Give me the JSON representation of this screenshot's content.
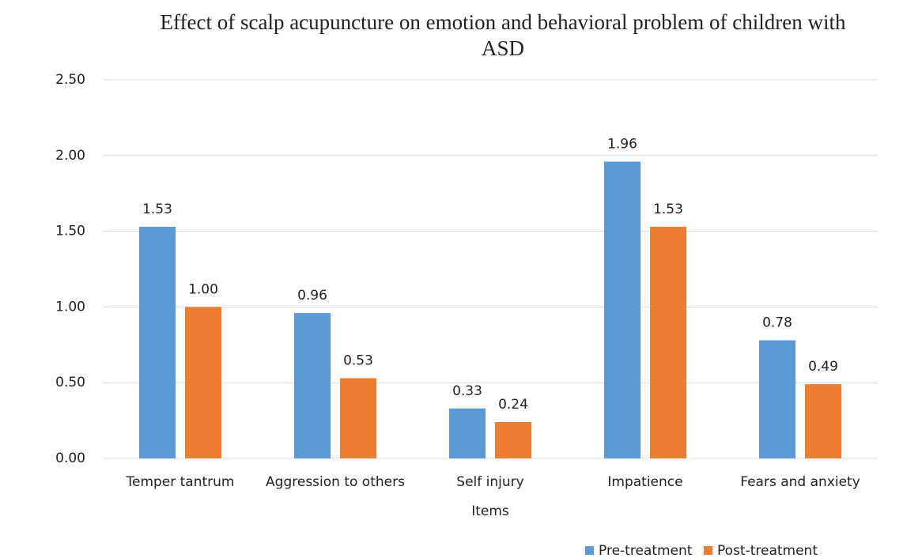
{
  "chart_data": {
    "type": "bar",
    "title": "Effect of scalp acupuncture on emotion and behavioral problem of children with ASD",
    "x_label": "Items",
    "categories": [
      "Temper tantrum",
      "Aggression to others",
      "Self injury",
      "Impatience",
      "Fears and anxiety"
    ],
    "series": [
      {
        "name": "Pre-treatment",
        "color": "#5b9bd5",
        "values": [
          1.53,
          0.96,
          0.33,
          1.96,
          0.78
        ],
        "value_labels": [
          "1.53",
          "0.96",
          "0.33",
          "1.96",
          "0.78"
        ]
      },
      {
        "name": "Post-treatment",
        "color": "#ed7d31",
        "values": [
          1.0,
          0.53,
          0.24,
          1.53,
          0.49
        ],
        "value_labels": [
          "1.00",
          "0.53",
          "0.24",
          "1.53",
          "0.49"
        ]
      }
    ],
    "ylim": [
      0,
      2.5
    ],
    "yticks": [
      {
        "value": 0,
        "label": "0.00"
      },
      {
        "value": 0.5,
        "label": "0.50"
      },
      {
        "value": 1,
        "label": "1.00"
      },
      {
        "value": 1.5,
        "label": "1.50"
      },
      {
        "value": 2,
        "label": "2.00"
      },
      {
        "value": 2.5,
        "label": "2.50"
      }
    ],
    "grid": true,
    "legend": "bottom"
  }
}
